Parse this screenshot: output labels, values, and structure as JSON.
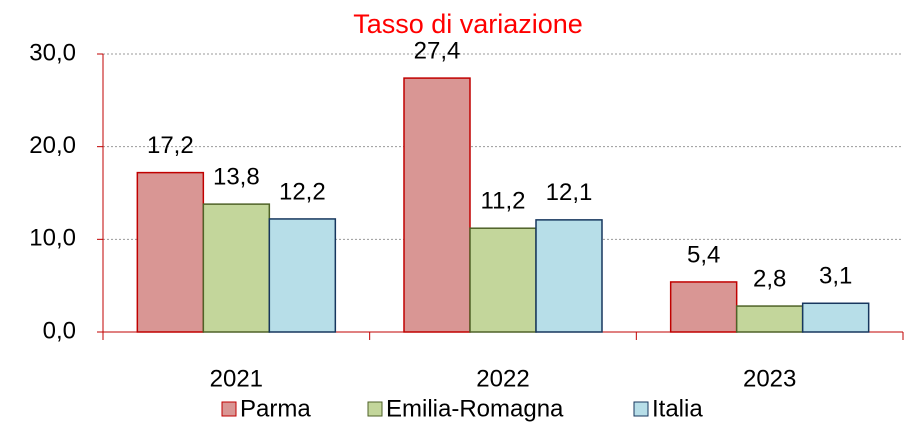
{
  "chart_data": {
    "type": "bar",
    "title": "Tasso di variazione",
    "categories": [
      "2021",
      "2022",
      "2023"
    ],
    "series": [
      {
        "name": "Parma",
        "color": "#d99694",
        "stroke": "#c00000",
        "values": [
          17.2,
          27.4,
          5.4
        ],
        "value_labels": [
          "17,2",
          "27,4",
          "5,4"
        ]
      },
      {
        "name": "Emilia-Romagna",
        "color": "#c3d69b",
        "stroke": "#4f6228",
        "values": [
          13.8,
          11.2,
          2.8
        ],
        "value_labels": [
          "13,8",
          "11,2",
          "2,8"
        ]
      },
      {
        "name": "Italia",
        "color": "#b7dee8",
        "stroke": "#17375e",
        "values": [
          12.2,
          12.1,
          3.1
        ],
        "value_labels": [
          "12,2",
          "12,1",
          "3,1"
        ]
      }
    ],
    "ylim": [
      0,
      30
    ],
    "yticks": [
      {
        "value": 0,
        "label": "0,0"
      },
      {
        "value": 10,
        "label": "10,0"
      },
      {
        "value": 20,
        "label": "20,0"
      },
      {
        "value": 30,
        "label": "30,0"
      }
    ],
    "grid": true
  }
}
